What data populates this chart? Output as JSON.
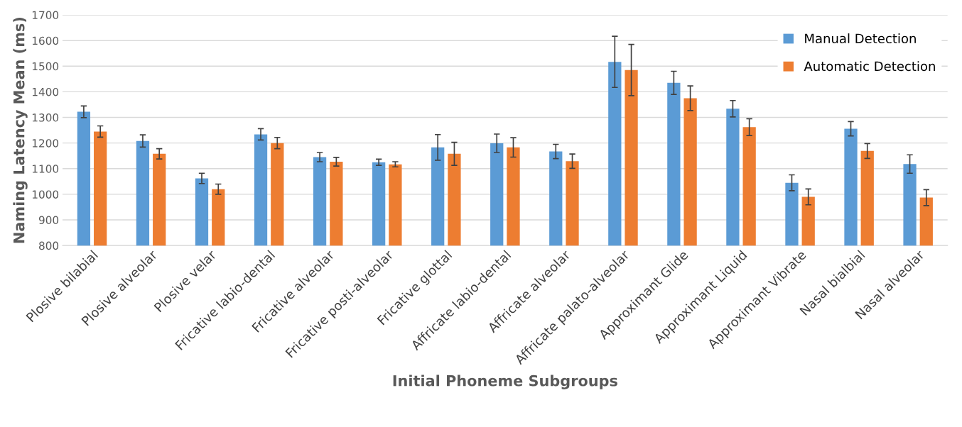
{
  "chart_data": {
    "type": "bar",
    "xlabel": "Initial Phoneme Subgroups",
    "ylabel": "Naming Latency Mean (ms)",
    "categories": [
      "Plosive bilabial",
      "Plosive alveolar",
      "Plosive velar",
      "Fricative labio-dental",
      "Fricative alveolar",
      "Fricative posti-alveolar",
      "Fricative glottal",
      "Affricate labio-dental",
      "Affricate alveolar",
      "Affricate palato-alveolar",
      "Approximant Glide",
      "Approximant Liquid",
      "Approximant Vibrate",
      "Nasal bialbial",
      "Nasal alveolar"
    ],
    "series": [
      {
        "name": "Manual Detection",
        "color": "#5b9bd5",
        "values": [
          1322,
          1208,
          1062,
          1234,
          1145,
          1125,
          1183,
          1199,
          1167,
          1517,
          1435,
          1334,
          1045,
          1256,
          1118
        ],
        "errors": [
          23,
          24,
          20,
          22,
          18,
          12,
          50,
          36,
          28,
          100,
          45,
          32,
          31,
          28,
          36
        ]
      },
      {
        "name": "Automatic Detection",
        "color": "#ed7d31",
        "values": [
          1245,
          1158,
          1020,
          1200,
          1127,
          1117,
          1158,
          1183,
          1129,
          1485,
          1375,
          1262,
          990,
          1169,
          987
        ],
        "errors": [
          22,
          20,
          20,
          22,
          17,
          10,
          45,
          38,
          28,
          100,
          48,
          33,
          31,
          29,
          31
        ]
      }
    ],
    "ylim": [
      800,
      1700
    ],
    "yticks": [
      800,
      900,
      1000,
      1100,
      1200,
      1300,
      1400,
      1500,
      1600,
      1700
    ],
    "grid": "y",
    "legend": "top right"
  }
}
